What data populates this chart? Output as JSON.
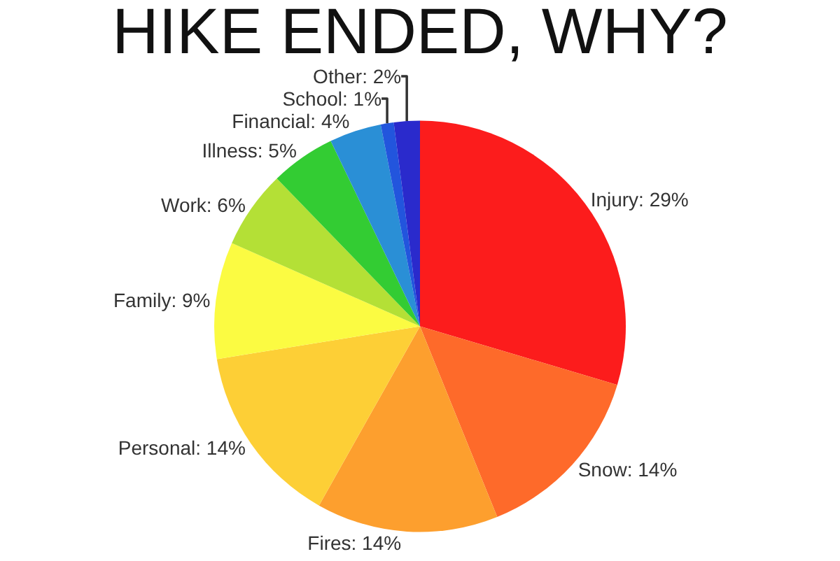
{
  "chart_data": {
    "type": "pie",
    "title": "HIKE ENDED, WHY?",
    "categories": [
      "Injury",
      "Snow",
      "Fires",
      "Personal",
      "Family",
      "Work",
      "Illness",
      "Financial",
      "School",
      "Other"
    ],
    "values": [
      29,
      14,
      14,
      14,
      9,
      6,
      5,
      4,
      1,
      2
    ],
    "value_labels": [
      "29%",
      "14%",
      "14%",
      "14%",
      "9%",
      "6%",
      "5%",
      "4%",
      "1%",
      "2%"
    ],
    "colors": [
      "#fc1c1c",
      "#fe6a2a",
      "#fd9f2e",
      "#fdcf36",
      "#fbfb42",
      "#b4e036",
      "#33cc33",
      "#2a8fd6",
      "#2255dd",
      "#2a2acc"
    ],
    "legend": false
  }
}
